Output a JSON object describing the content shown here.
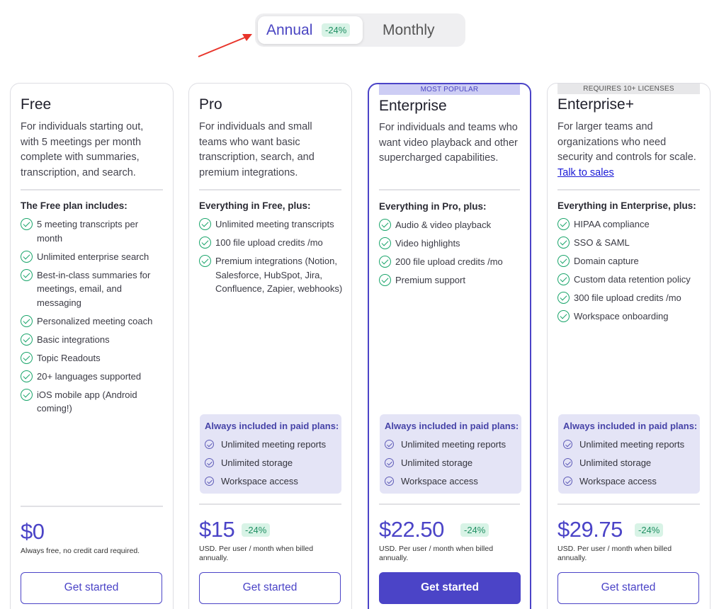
{
  "toggle": {
    "annual_label": "Annual",
    "annual_badge": "-24%",
    "monthly_label": "Monthly"
  },
  "plans": [
    {
      "name": "Free",
      "description": "For individuals starting out, with 5 meetings per month complete with summaries, transcription, and search.",
      "includes_title": "The Free plan includes:",
      "features": [
        "5 meeting transcripts per month",
        "Unlimited enterprise search",
        "Best-in-class summaries for meetings, email, and messaging",
        "Personalized meeting coach",
        "Basic integrations",
        "Topic Readouts",
        "20+ languages supported",
        "iOS mobile app (Android coming!)"
      ],
      "price": "$0",
      "price_note": "Always free, no credit card required.",
      "cta": "Get started"
    },
    {
      "name": "Pro",
      "description": "For individuals and small teams who want basic transcription, search, and premium integrations.",
      "includes_title": "Everything in Free, plus:",
      "features": [
        "Unlimited meeting transcripts",
        "100 file upload credits /mo",
        "Premium integrations (Notion, Salesforce, HubSpot, Jira, Confluence, Zapier, webhooks)"
      ],
      "paid_title": "Always included in paid plans:",
      "paid_features": [
        "Unlimited meeting reports",
        "Unlimited storage",
        "Workspace access"
      ],
      "price": "$15",
      "price_badge": "-24%",
      "price_note": "USD. Per user / month when billed annually.",
      "cta": "Get started"
    },
    {
      "ribbon": "MOST POPULAR",
      "name": "Enterprise",
      "description": "For individuals and teams who want video playback and other supercharged capabilities.",
      "includes_title": "Everything in Pro, plus:",
      "features": [
        "Audio & video playback",
        "Video highlights",
        "200 file upload credits /mo",
        "Premium support"
      ],
      "paid_title": "Always included in paid plans:",
      "paid_features": [
        "Unlimited meeting reports",
        "Unlimited storage",
        "Workspace access"
      ],
      "price": "$22.50",
      "price_badge": "-24%",
      "price_note": "USD. Per user / month when billed annually.",
      "cta": "Get started"
    },
    {
      "ribbon": "REQUIRES 10+ LICENSES",
      "name": "Enterprise+",
      "description": "For larger teams and organizations who need security and controls for scale.",
      "description_link": "Talk to sales",
      "includes_title": "Everything in Enterprise, plus:",
      "features": [
        "HIPAA compliance",
        "SSO & SAML",
        "Domain capture",
        "Custom data retention policy",
        "300 file upload credits /mo",
        "Workspace onboarding"
      ],
      "paid_title": "Always included in paid plans:",
      "paid_features": [
        "Unlimited meeting reports",
        "Unlimited storage",
        "Workspace access"
      ],
      "price": "$29.75",
      "price_badge": "-24%",
      "price_note": "USD. Per user / month when billed annually.",
      "cta": "Get started"
    }
  ],
  "colors": {
    "accent": "#4b44c7",
    "badge_green": "#1f8f63",
    "check_green": "#1aa56b",
    "annotation_arrow": "#e8342a"
  }
}
